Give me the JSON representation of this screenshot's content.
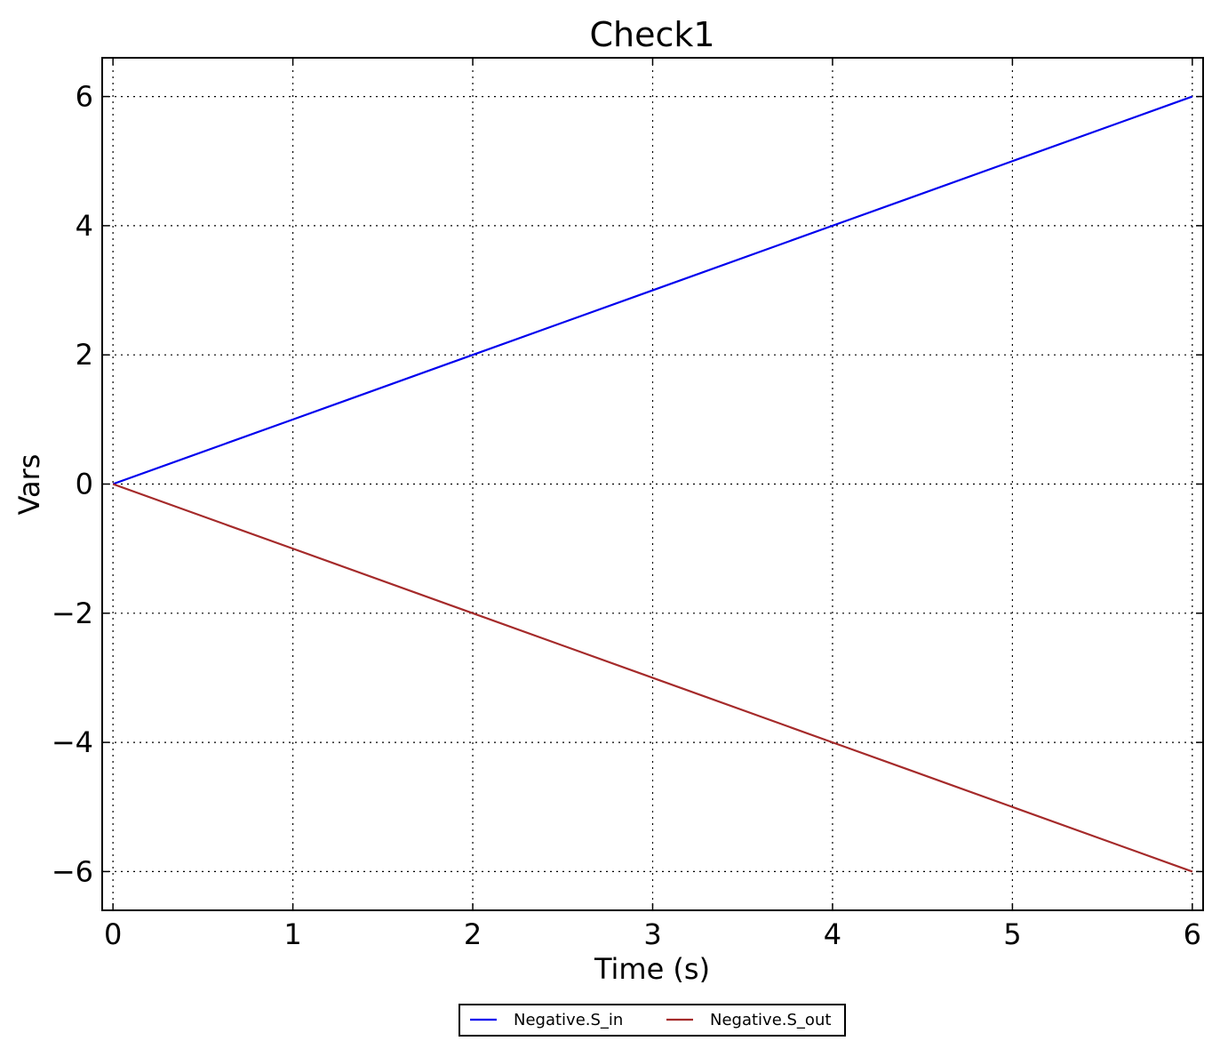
{
  "chart_data": {
    "type": "line",
    "title": "Check1",
    "xlabel": "Time (s)",
    "ylabel": "Vars",
    "xlim": [
      -0.06,
      6.06
    ],
    "ylim": [
      -6.6,
      6.6
    ],
    "xticks": [
      0,
      1,
      2,
      3,
      4,
      5,
      6
    ],
    "yticks": [
      -6,
      -4,
      -2,
      0,
      2,
      4,
      6
    ],
    "xtick_labels": [
      "0",
      "1",
      "2",
      "3",
      "4",
      "5",
      "6"
    ],
    "ytick_labels": [
      "−6",
      "−4",
      "−2",
      "0",
      "2",
      "4",
      "6"
    ],
    "grid": true,
    "legend_position": "bottom-center",
    "series": [
      {
        "name": "Negative.S_in",
        "color": "#0000ee",
        "x": [
          0,
          1,
          2,
          3,
          4,
          5,
          6
        ],
        "y": [
          0,
          1,
          2,
          3,
          4,
          5,
          6
        ]
      },
      {
        "name": "Negative.S_out",
        "color": "#a52a2a",
        "x": [
          0,
          1,
          2,
          3,
          4,
          5,
          6
        ],
        "y": [
          0,
          -1,
          -2,
          -3,
          -4,
          -5,
          -6
        ]
      }
    ]
  }
}
